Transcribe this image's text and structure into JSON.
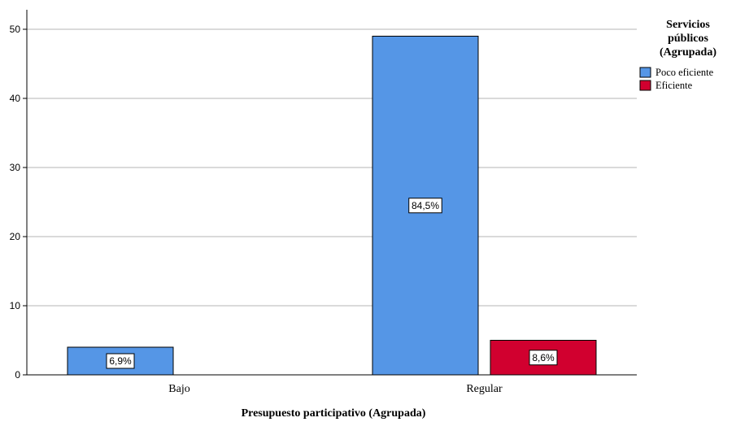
{
  "chart_data": {
    "type": "bar",
    "categories": [
      "Bajo",
      "Regular"
    ],
    "series": [
      {
        "name": "Poco eficiente",
        "values": [
          4,
          49
        ],
        "labels": [
          "6,9%",
          "84,5%"
        ],
        "color": "#5596e6"
      },
      {
        "name": "Eficiente",
        "values": [
          0,
          5
        ],
        "labels": [
          "",
          "8,6%"
        ],
        "color": "#d1002f"
      }
    ],
    "xlabel": "Presupuesto participativo (Agrupada)",
    "ylabel": "",
    "ylim": [
      0,
      50
    ],
    "yticks": [
      0,
      10,
      20,
      30,
      40,
      50
    ],
    "grid": true,
    "legend": {
      "title_lines": [
        "Servicios",
        "públicos",
        "(Agrupada)"
      ],
      "placement": "right"
    }
  }
}
